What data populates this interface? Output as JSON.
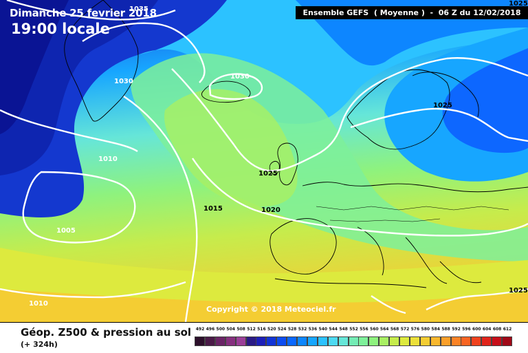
{
  "header": {
    "date": "Dimanche 25 fevrier 2018",
    "time": "19:00 locale",
    "model": "Ensemble GEFS  ( Moyenne )  -  06 Z du 12/02/2018"
  },
  "copyright": "Copyright © 2018 Meteociel.fr",
  "footer": {
    "parameter": "Géop. Z500 & pression au sol",
    "lead_time": "(+ 324h)"
  },
  "isobars": [
    {
      "label": "1035",
      "tone": "light"
    },
    {
      "label": "1030",
      "tone": "light"
    },
    {
      "label": "1030",
      "tone": "light"
    },
    {
      "label": "1010",
      "tone": "light"
    },
    {
      "label": "1005",
      "tone": "light"
    },
    {
      "label": "1015",
      "tone": "dark"
    },
    {
      "label": "1025",
      "tone": "dark"
    },
    {
      "label": "1020",
      "tone": "dark"
    },
    {
      "label": "1025",
      "tone": "dark"
    },
    {
      "label": "1010",
      "tone": "light"
    },
    {
      "label": "1025",
      "tone": "dark"
    },
    {
      "label": "1025",
      "tone": "dark"
    }
  ],
  "legend": {
    "values": [
      "492",
      "496",
      "500",
      "504",
      "508",
      "512",
      "516",
      "520",
      "524",
      "528",
      "532",
      "536",
      "540",
      "544",
      "548",
      "552",
      "556",
      "560",
      "564",
      "568",
      "572",
      "576",
      "580",
      "584",
      "588",
      "592",
      "596",
      "600",
      "604",
      "608",
      "612"
    ],
    "colors": [
      "#2c0f2a",
      "#4a1a47",
      "#6a2466",
      "#86307f",
      "#9b3f98",
      "#2a1a86",
      "#1d1fb8",
      "#1234d6",
      "#0d4cf0",
      "#0a67ff",
      "#0d86ff",
      "#17a6ff",
      "#2cc2ff",
      "#4ddaf2",
      "#66e6d8",
      "#74ecb5",
      "#7ef09a",
      "#8ef27e",
      "#a9f063",
      "#c6ec4c",
      "#ddea3e",
      "#ece03a",
      "#f4cd33",
      "#f8b72e",
      "#fa9f2a",
      "#fb8326",
      "#f96422",
      "#f0421e",
      "#e0241b",
      "#c70f1a",
      "#a00a18"
    ]
  }
}
